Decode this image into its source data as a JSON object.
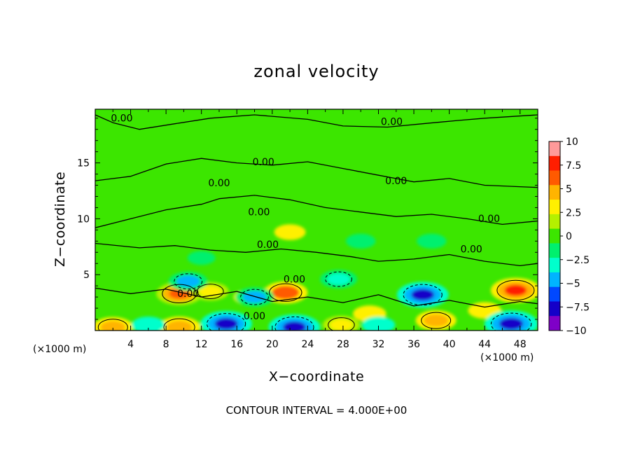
{
  "chart_data": {
    "type": "heatmap",
    "title": "zonal velocity",
    "xlabel": "X−coordinate",
    "ylabel": "Z−coordinate",
    "x_unit_label": "(×1000 m)",
    "x_ticks": [
      "4",
      "8",
      "12",
      "16",
      "20",
      "24",
      "28",
      "32",
      "36",
      "40",
      "44",
      "48"
    ],
    "y_ticks": [
      "5",
      "10",
      "15"
    ],
    "xlim": [
      0,
      50
    ],
    "ylim": [
      0,
      19.8
    ],
    "contour_interval_text": "CONTOUR INTERVAL = 4.000E+00",
    "contour_labels": [
      "0.00",
      "0.00",
      "0.00",
      "0.00",
      "0.00",
      "0.00",
      "0.00",
      "0.00",
      "0.00",
      "0.00",
      "0.00",
      "0.00"
    ],
    "colorbar": {
      "ticks": [
        "10",
        "7.5",
        "5",
        "2.5",
        "0",
        "−2.5",
        "−5",
        "−7.5",
        "−10"
      ],
      "range": [
        -10,
        10
      ]
    },
    "background_value": 0,
    "features": [
      {
        "x": 9.5,
        "z": 3.3,
        "value": 6.5
      },
      {
        "x": 21.5,
        "z": 3.4,
        "value": 6.0
      },
      {
        "x": 47.5,
        "z": 3.6,
        "value": 7.5
      },
      {
        "x": 38.5,
        "z": 0.9,
        "value": 5.0
      },
      {
        "x": 9.5,
        "z": 0.3,
        "value": 5.5
      },
      {
        "x": 2.0,
        "z": 0.3,
        "value": 5.0
      },
      {
        "x": 27.8,
        "z": 0.5,
        "value": 4.0
      },
      {
        "x": 13.0,
        "z": 3.5,
        "value": 4.0
      },
      {
        "x": 17.5,
        "z": 3.0,
        "value": 3.0
      },
      {
        "x": 31.0,
        "z": 1.5,
        "value": 3.0
      },
      {
        "x": 22.0,
        "z": 8.8,
        "value": 2.5
      },
      {
        "x": 44.0,
        "z": 1.8,
        "value": 3.0
      },
      {
        "x": 14.8,
        "z": 0.6,
        "value": -8.0
      },
      {
        "x": 22.5,
        "z": 0.3,
        "value": -8.0
      },
      {
        "x": 37.0,
        "z": 3.2,
        "value": -8.0
      },
      {
        "x": 47.0,
        "z": 0.6,
        "value": -8.5
      },
      {
        "x": 10.5,
        "z": 4.4,
        "value": -4.5
      },
      {
        "x": 27.5,
        "z": 4.6,
        "value": -4.0
      },
      {
        "x": 18.0,
        "z": 3.0,
        "value": -4.5
      },
      {
        "x": 6.0,
        "z": 0.5,
        "value": -3.0
      },
      {
        "x": 32.0,
        "z": 0.5,
        "value": -3.0
      },
      {
        "x": 30.0,
        "z": 8.0,
        "value": -2.0
      },
      {
        "x": 38.0,
        "z": 8.0,
        "value": -2.0
      },
      {
        "x": 12.0,
        "z": 6.5,
        "value": -1.5
      }
    ]
  },
  "colors": {
    "colorbar_stops": [
      "#7f00c8",
      "#1400c8",
      "#0048ff",
      "#00b4ff",
      "#00ffcc",
      "#00f06e",
      "#3ce600",
      "#b4f000",
      "#fff000",
      "#ffb400",
      "#ff5a00",
      "#ff1e00",
      "#ff9a9a"
    ]
  }
}
